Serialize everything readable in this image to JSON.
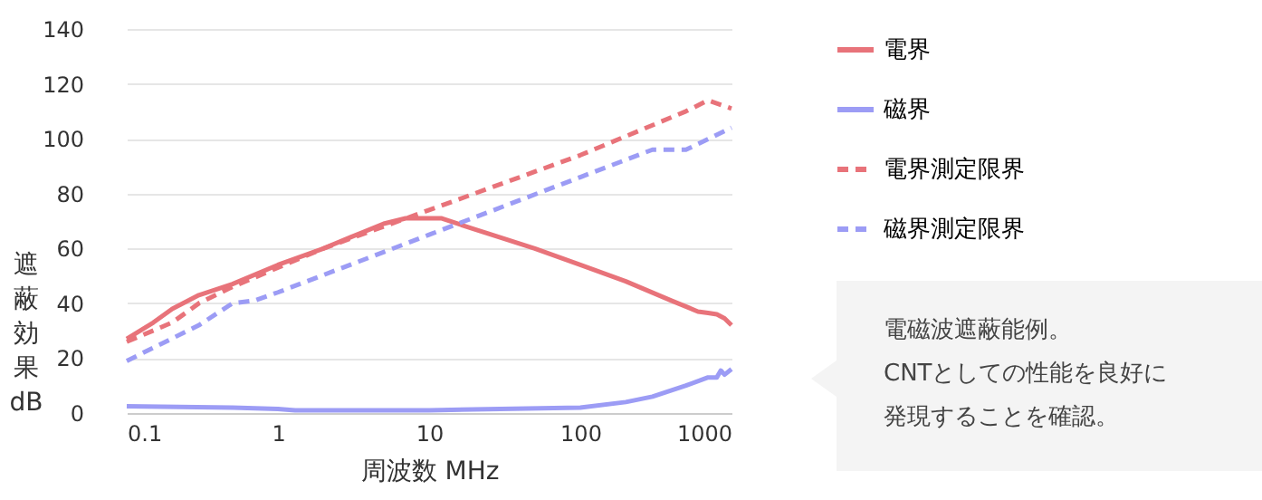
{
  "chart_data": {
    "type": "line",
    "xlabel": "周波数 MHz",
    "ylabel": "遮蔽効果 dB",
    "log": "x",
    "xlim": [
      0.1,
      1000
    ],
    "xticks": [
      0.1,
      1,
      10,
      100,
      1000
    ],
    "ylim": [
      0,
      140
    ],
    "yticks": [
      0,
      20,
      40,
      60,
      80,
      100,
      120,
      140
    ],
    "grid": "y",
    "legend": "right",
    "marker": "none",
    "series": [
      {
        "name": "電界",
        "color": "#e8737a",
        "line_style": "solid",
        "x": [
          0.1,
          0.15,
          0.2,
          0.3,
          0.5,
          1,
          2,
          3,
          5,
          7,
          12,
          20,
          50,
          100,
          200,
          400,
          600,
          700,
          800,
          900,
          1000
        ],
        "values": [
          27,
          33,
          38,
          43,
          47,
          54,
          60,
          64,
          69,
          71,
          71,
          67,
          60,
          54,
          48,
          41,
          37,
          36.5,
          36,
          34.5,
          32
        ]
      },
      {
        "name": "磁界",
        "color": "#9c9cf5",
        "line_style": "solid",
        "x": [
          0.1,
          0.5,
          1,
          1.3,
          3,
          10,
          100,
          200,
          300,
          500,
          700,
          800,
          850,
          900,
          1000
        ],
        "values": [
          2.5,
          2,
          1.5,
          1,
          1,
          1,
          2,
          4,
          6,
          10,
          13,
          13,
          15.5,
          14,
          16
        ]
      },
      {
        "name": "電界測定限界",
        "color": "#e8737a",
        "line_style": "dashed",
        "x": [
          0.1,
          0.2,
          0.3,
          0.5,
          1,
          2,
          5,
          10,
          100,
          500,
          700,
          1000
        ],
        "values": [
          26,
          33,
          40,
          46,
          53,
          60,
          68,
          74,
          94,
          110,
          114,
          111
        ]
      },
      {
        "name": "磁界測定限界",
        "color": "#9c9cf5",
        "line_style": "dashed",
        "x": [
          0.1,
          0.3,
          0.5,
          0.7,
          1,
          10,
          100,
          300,
          500,
          1000
        ],
        "values": [
          19,
          32,
          40,
          41,
          44,
          65,
          86,
          96,
          96,
          104
        ]
      }
    ],
    "annotations": [
      "電磁波遮蔽能例。",
      "CNTとしての性能を良好に",
      "発現することを確認。"
    ]
  }
}
